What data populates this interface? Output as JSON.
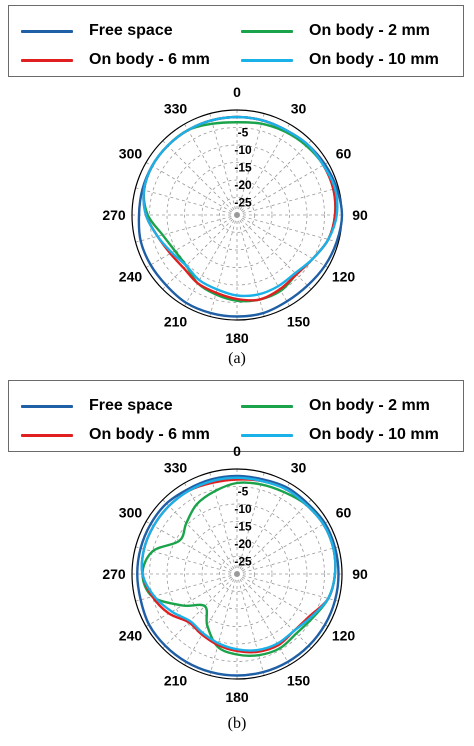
{
  "chart_data": [
    {
      "type": "polar-line",
      "panel_label": "(a)",
      "angle_ticks": [
        "0",
        "30",
        "60",
        "90",
        "120",
        "150",
        "180",
        "210",
        "240",
        "270",
        "300",
        "330"
      ],
      "radial_ticks": [
        "-5",
        "-10",
        "-15",
        "-20",
        "-25"
      ],
      "rlim": [
        -30,
        0
      ],
      "grid": true,
      "legend": "top",
      "angles": [
        0,
        15,
        30,
        45,
        60,
        75,
        90,
        105,
        120,
        135,
        150,
        165,
        180,
        195,
        210,
        225,
        240,
        255,
        270,
        285,
        300,
        315,
        330,
        345
      ],
      "series": [
        {
          "name": "Free space",
          "color": "#1f5fa6",
          "values": [
            -2,
            -2,
            -2,
            -1.5,
            -1,
            -0.5,
            0,
            -0.5,
            -1,
            -1.5,
            -1.5,
            -1,
            -1,
            -1,
            -1,
            -1.5,
            -1.5,
            -1.5,
            -2,
            -2,
            -2,
            -2,
            -2,
            -2
          ]
        },
        {
          "name": "On body - 2 mm",
          "color": "#1aa34a",
          "values": [
            -3.5,
            -3,
            -2.5,
            -2,
            -1.5,
            -1.5,
            -2,
            -3,
            -5,
            -6,
            -5,
            -5,
            -5.5,
            -6.5,
            -7.5,
            -9.5,
            -9.5,
            -8,
            -4.5,
            -2.5,
            -2,
            -2,
            -2,
            -3
          ]
        },
        {
          "name": "On body - 6 mm",
          "color": "#e02020",
          "values": [
            -2,
            -2,
            -2,
            -1.5,
            -1.5,
            -1.5,
            -2,
            -3,
            -5,
            -6,
            -5.5,
            -5,
            -6,
            -7,
            -7.5,
            -8.5,
            -8,
            -6.5,
            -4,
            -2.5,
            -2,
            -2,
            -2,
            -2
          ]
        },
        {
          "name": "On body - 10 mm",
          "color": "#1ab0e8",
          "values": [
            -2,
            -2,
            -2,
            -1.5,
            -1.5,
            -1,
            -1.5,
            -3,
            -5,
            -6.5,
            -6.5,
            -6.5,
            -7,
            -8,
            -8.5,
            -9.5,
            -8.5,
            -6.5,
            -4,
            -2.5,
            -2,
            -2,
            -2,
            -2
          ]
        }
      ]
    },
    {
      "type": "polar-line",
      "panel_label": "(b)",
      "angle_ticks": [
        "0",
        "30",
        "60",
        "90",
        "120",
        "150",
        "180",
        "210",
        "240",
        "270",
        "300",
        "330"
      ],
      "radial_ticks": [
        "-5",
        "-10",
        "-15",
        "-20",
        "-25"
      ],
      "rlim": [
        -30,
        0
      ],
      "grid": true,
      "legend": "top",
      "angles": [
        0,
        15,
        30,
        45,
        60,
        75,
        90,
        105,
        120,
        135,
        150,
        165,
        180,
        195,
        210,
        225,
        240,
        255,
        270,
        285,
        300,
        315,
        330,
        345
      ],
      "series": [
        {
          "name": "Free space",
          "color": "#1f5fa6",
          "values": [
            -2,
            -2,
            -1.5,
            -1.5,
            -1,
            -1,
            -1,
            -1,
            -1,
            -1,
            -1,
            -1,
            -1,
            -1,
            -1,
            -1,
            -1,
            -1.5,
            -1.5,
            -1.5,
            -1.5,
            -1.5,
            -2,
            -2
          ]
        },
        {
          "name": "On body - 2 mm",
          "color": "#1aa34a",
          "values": [
            -4,
            -3.5,
            -3,
            -2,
            -1.5,
            -1.5,
            -2,
            -3,
            -5,
            -6,
            -5.5,
            -6,
            -7,
            -8.5,
            -13,
            -17,
            -12,
            -5,
            -3,
            -5,
            -11,
            -9.5,
            -7,
            -5.5
          ]
        },
        {
          "name": "On body - 6 mm",
          "color": "#e02020",
          "values": [
            -3,
            -2.5,
            -2,
            -2,
            -1.5,
            -1.5,
            -2,
            -3,
            -6,
            -7,
            -6.5,
            -7,
            -8,
            -9,
            -10,
            -10.5,
            -7.5,
            -5,
            -3,
            -2.5,
            -2.5,
            -2.5,
            -2.5,
            -3
          ]
        },
        {
          "name": "On body - 10 mm",
          "color": "#1ab0e8",
          "values": [
            -2.5,
            -2.5,
            -2,
            -2,
            -1.5,
            -1.5,
            -2,
            -3,
            -5.5,
            -7,
            -7,
            -7.5,
            -8.5,
            -9.5,
            -10.5,
            -11,
            -8.5,
            -5.5,
            -3,
            -2.5,
            -2.5,
            -2.5,
            -2.5,
            -2.5
          ]
        }
      ]
    }
  ],
  "captions": [
    "(a)",
    "(b)"
  ]
}
